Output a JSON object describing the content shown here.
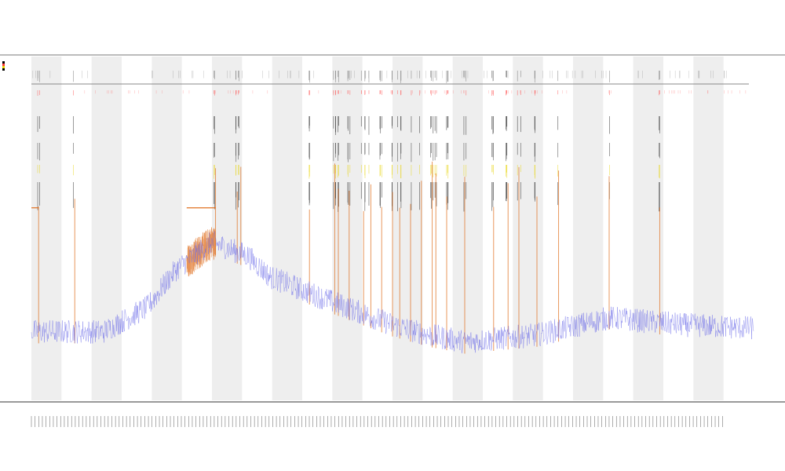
{
  "chart_data": {
    "type": "line",
    "title": "",
    "subtitle_1": "",
    "subtitle_2": "",
    "xlabel": "",
    "ylabel": "",
    "grid": false,
    "bands": 24,
    "legend": {
      "placement": "left",
      "entries": [
        {
          "name": "",
          "color": "#000000"
        },
        {
          "name": "",
          "color": "#ff3333"
        },
        {
          "name": "",
          "color": "#e6d200"
        },
        {
          "name": "",
          "color": "#000000"
        }
      ]
    },
    "series": [
      {
        "name": "",
        "color": "#6a6ae8",
        "profile": [
          [
            0.0,
            0.2
          ],
          [
            0.1,
            0.2
          ],
          [
            0.16,
            0.27
          ],
          [
            0.2,
            0.38
          ],
          [
            0.25,
            0.46
          ],
          [
            0.3,
            0.42
          ],
          [
            0.33,
            0.36
          ],
          [
            0.4,
            0.3
          ],
          [
            0.45,
            0.26
          ],
          [
            0.5,
            0.22
          ],
          [
            0.55,
            0.19
          ],
          [
            0.6,
            0.17
          ],
          [
            0.7,
            0.19
          ],
          [
            0.8,
            0.24
          ],
          [
            0.9,
            0.22
          ],
          [
            1.0,
            0.21
          ]
        ]
      },
      {
        "name": "",
        "color": "#e07020",
        "segments": [
          [
            0.215,
            0.31
          ],
          [
            0.255,
            0.31
          ]
        ]
      }
    ],
    "spikes": {
      "color": "#e07020",
      "x": [
        0.01,
        0.06,
        0.255,
        0.285,
        0.29,
        0.385,
        0.42,
        0.425,
        0.44,
        0.46,
        0.47,
        0.485,
        0.5,
        0.51,
        0.525,
        0.54,
        0.555,
        0.56,
        0.575,
        0.6,
        0.64,
        0.66,
        0.675,
        0.7,
        0.73,
        0.8,
        0.87
      ]
    }
  }
}
